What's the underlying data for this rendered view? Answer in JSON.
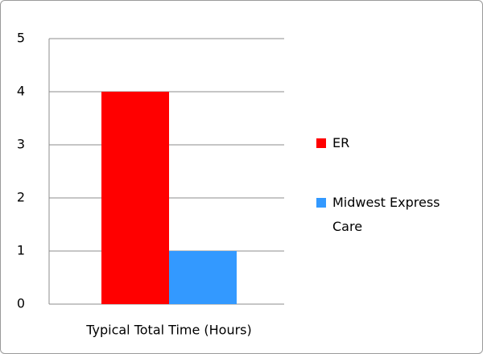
{
  "chart_data": {
    "type": "bar",
    "categories": [
      "Typical Total Time (Hours)"
    ],
    "series": [
      {
        "name": "ER",
        "color": "#ff0000",
        "values": [
          4
        ]
      },
      {
        "name": "Midwest Express Care",
        "color": "#3399ff",
        "values": [
          1
        ]
      }
    ],
    "ylim": [
      0,
      5
    ],
    "yticks": [
      0,
      1,
      2,
      3,
      4,
      5
    ],
    "grid": true,
    "legend": "right"
  }
}
